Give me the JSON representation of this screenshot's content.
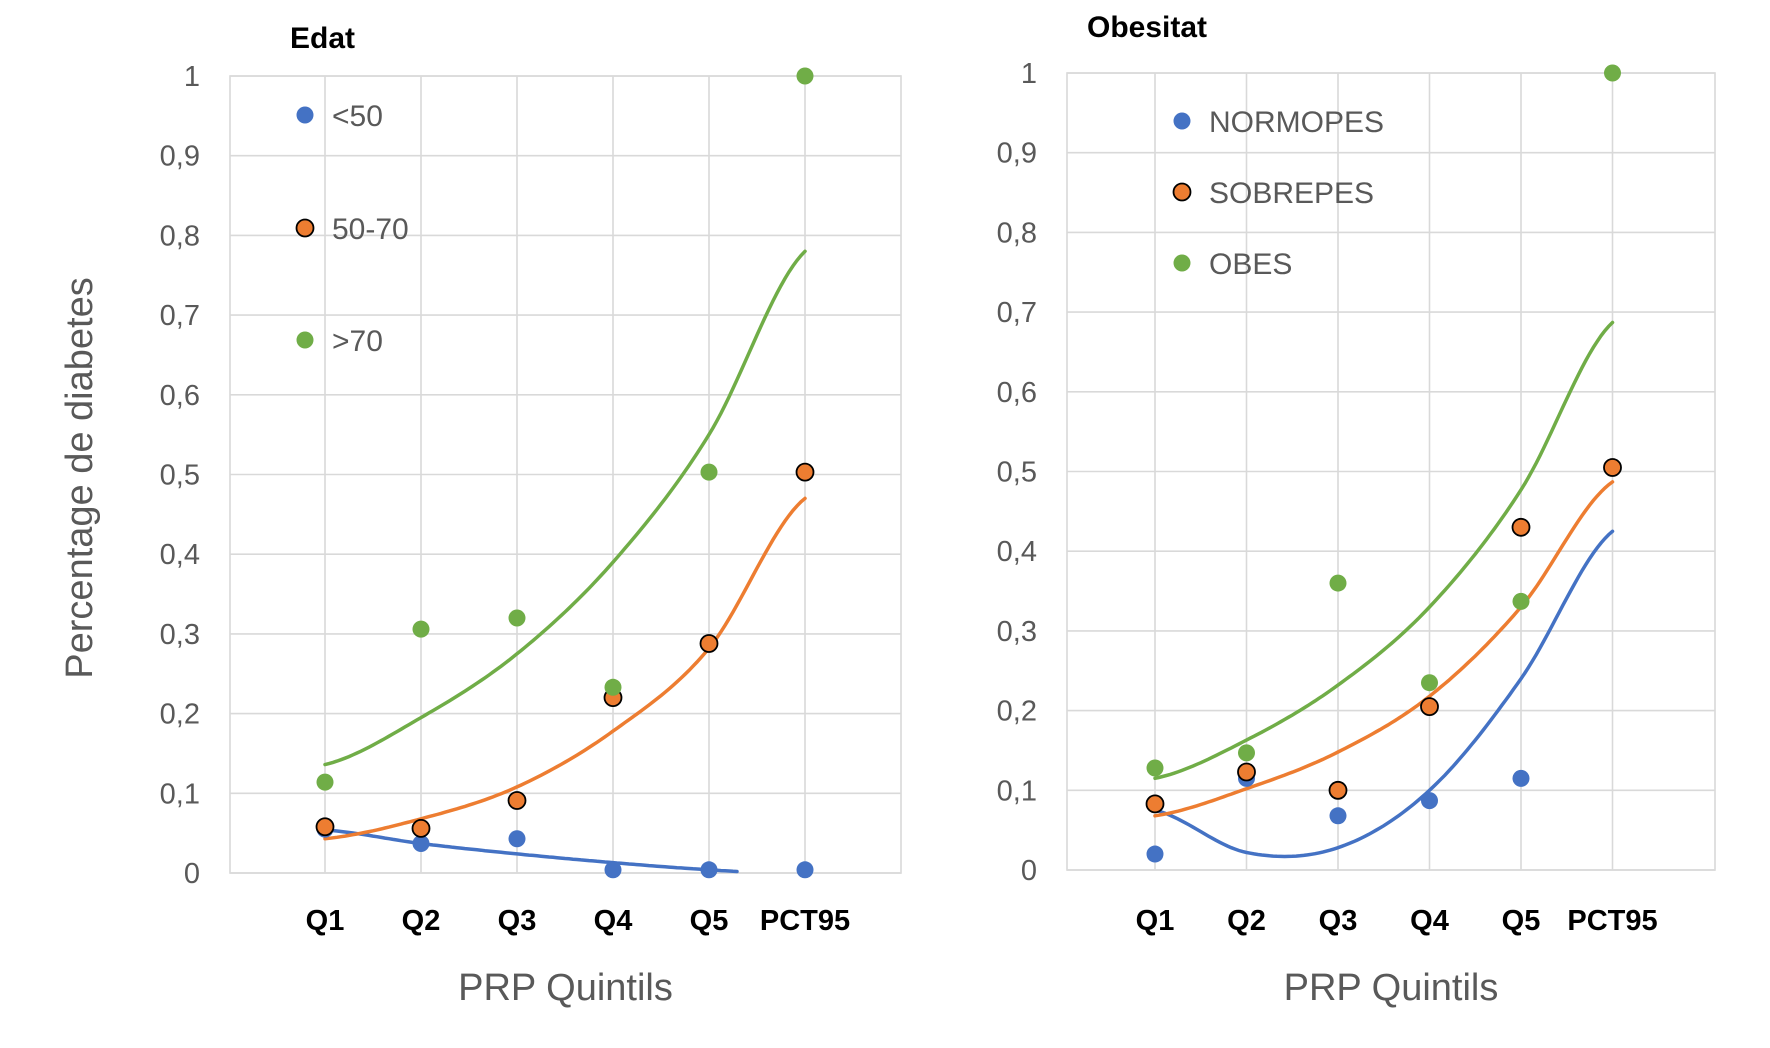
{
  "ylabel": "Percentage de diabetes",
  "chart_data": [
    {
      "type": "scatter",
      "title": "Edat",
      "xlabel": "PRP Quintils",
      "ylabel": "Percentage de diabetes",
      "categories": [
        "Q1",
        "Q2",
        "Q3",
        "Q4",
        "Q5",
        "PCT95"
      ],
      "ylim": [
        0,
        1
      ],
      "yticks": [
        "0",
        "0,1",
        "0,2",
        "0,3",
        "0,4",
        "0,5",
        "0,6",
        "0,7",
        "0,8",
        "0,9",
        "1"
      ],
      "grid": true,
      "legend_position": "top-left",
      "series": [
        {
          "name": "<50",
          "color": "#4472c4",
          "values": [
            0.055,
            0.037,
            0.043,
            0.004,
            0.004,
            0.004
          ],
          "trend": "exponential",
          "trend_values": [
            0.054,
            0.037,
            0.024,
            0.013,
            0.004,
            -0.002
          ],
          "trend_end_index": 4.3
        },
        {
          "name": "50-70",
          "color": "#ed7d31",
          "outlined": true,
          "values": [
            0.058,
            0.056,
            0.091,
            0.22,
            0.288,
            0.503
          ],
          "trend": "exponential",
          "trend_values": [
            0.043,
            0.068,
            0.108,
            0.178,
            0.282,
            0.47
          ],
          "trend_end_index": 5
        },
        {
          "name": ">70",
          "color": "#70ad47",
          "values": [
            0.114,
            0.306,
            0.32,
            0.233,
            0.503,
            1.0
          ],
          "trend": "exponential",
          "trend_values": [
            0.136,
            0.195,
            0.275,
            0.39,
            0.55,
            0.78
          ],
          "trend_end_index": 5
        }
      ]
    },
    {
      "type": "scatter",
      "title": "Obesitat",
      "xlabel": "PRP Quintils",
      "ylabel": "Percentage de diabetes",
      "categories": [
        "Q1",
        "Q2",
        "Q3",
        "Q4",
        "Q5",
        "PCT95"
      ],
      "ylim": [
        0,
        1
      ],
      "yticks": [
        "0",
        "0,1",
        "0,2",
        "0,3",
        "0,4",
        "0,5",
        "0,6",
        "0,7",
        "0,8",
        "0,9",
        "1"
      ],
      "grid": true,
      "legend_position": "top-left",
      "series": [
        {
          "name": "NORMOPES",
          "color": "#4472c4",
          "values": [
            0.02,
            0.115,
            0.068,
            0.087,
            0.115,
            0.505
          ],
          "trend": "polynomial",
          "trend_values": [
            0.075,
            0.022,
            0.028,
            0.1,
            0.24,
            0.425
          ],
          "trend_end_index": 5
        },
        {
          "name": "SOBREPES",
          "color": "#ed7d31",
          "outlined": true,
          "values": [
            0.083,
            0.123,
            0.1,
            0.205,
            0.43,
            0.505
          ],
          "trend": "exponential",
          "trend_values": [
            0.068,
            0.102,
            0.148,
            0.218,
            0.33,
            0.487
          ],
          "trend_end_index": 5
        },
        {
          "name": "OBES",
          "color": "#70ad47",
          "values": [
            0.128,
            0.147,
            0.36,
            0.235,
            0.337,
            1.0
          ],
          "trend": "exponential",
          "trend_values": [
            0.115,
            0.163,
            0.232,
            0.33,
            0.477,
            0.687
          ],
          "trend_end_index": 5
        }
      ]
    }
  ]
}
